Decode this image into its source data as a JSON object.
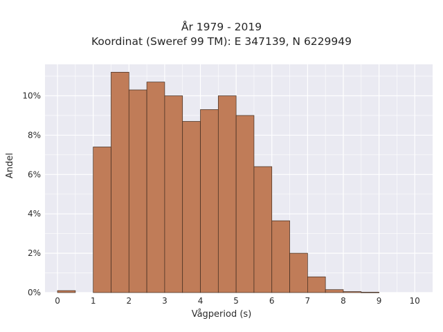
{
  "chart_data": {
    "type": "bar",
    "title": "År 1979 - 2019",
    "subtitle": "Koordinat (Sweref 99 TM): E 347139, N 6229949",
    "xlabel": "Vågperiod (s)",
    "ylabel": "Andel",
    "bin_width": 0.5,
    "x": [
      0,
      0.5,
      1,
      1.5,
      2,
      2.5,
      3,
      3.5,
      4,
      4.5,
      5,
      5.5,
      6,
      6.5,
      7,
      7.5,
      8,
      8.5,
      9,
      9.5
    ],
    "values": [
      0.1,
      0,
      7.4,
      11.2,
      10.3,
      10.7,
      10.0,
      8.7,
      9.3,
      10.0,
      9.0,
      6.4,
      3.65,
      2.0,
      0.8,
      0.15,
      0.05,
      0.02,
      0,
      0
    ],
    "xlim": [
      -0.35,
      10.5
    ],
    "ylim": [
      0,
      11.6
    ],
    "x_ticks": [
      "0",
      "1",
      "2",
      "3",
      "4",
      "5",
      "6",
      "7",
      "8",
      "9",
      "10"
    ],
    "y_ticks": [
      "0%",
      "2%",
      "4%",
      "6%",
      "8%",
      "10%"
    ],
    "y_tick_values": [
      0,
      2,
      4,
      6,
      8,
      10
    ],
    "grid": true,
    "colors": {
      "bar": "#c07c58",
      "bar_edge": "#3d2a1e",
      "background": "#eaeaf2",
      "grid": "#ffffff"
    }
  }
}
